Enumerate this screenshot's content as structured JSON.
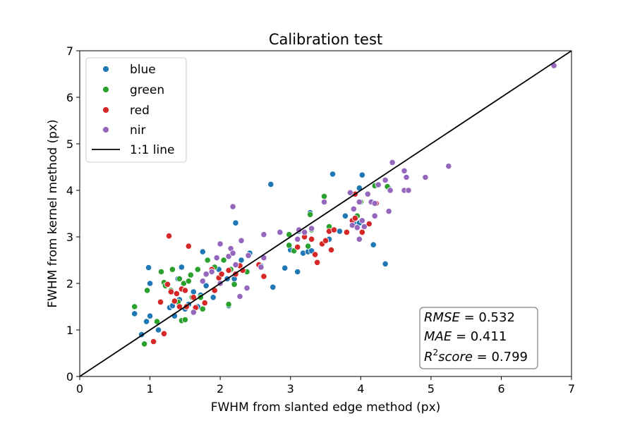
{
  "chart_data": {
    "type": "scatter",
    "title": "Calibration test",
    "xlabel": "FWHM from slanted edge method (px)",
    "ylabel": "FWHM from kernel method (px)",
    "xlim": [
      0,
      7
    ],
    "ylim": [
      0,
      7
    ],
    "xticks": [
      "0",
      "1",
      "2",
      "3",
      "4",
      "5",
      "6",
      "7"
    ],
    "yticks": [
      "0",
      "1",
      "2",
      "3",
      "4",
      "5",
      "6",
      "7"
    ],
    "grid": false,
    "legend_position": "top-left",
    "reference_line": {
      "name": "1:1 line",
      "points": [
        [
          0,
          0
        ],
        [
          7,
          7
        ]
      ],
      "color": "#000000"
    },
    "series": [
      {
        "name": "blue",
        "color": "#1f77b4",
        "points": [
          [
            0.78,
            1.35
          ],
          [
            0.88,
            0.9
          ],
          [
            0.95,
            1.18
          ],
          [
            0.98,
            2.34
          ],
          [
            1.0,
            2.0
          ],
          [
            1.0,
            1.3
          ],
          [
            1.05,
            0.75
          ],
          [
            1.12,
            1.0
          ],
          [
            1.28,
            1.48
          ],
          [
            1.32,
            1.52
          ],
          [
            1.35,
            1.3
          ],
          [
            1.4,
            2.1
          ],
          [
            1.42,
            1.65
          ],
          [
            1.45,
            2.35
          ],
          [
            1.5,
            1.45
          ],
          [
            1.55,
            1.55
          ],
          [
            1.62,
            1.82
          ],
          [
            1.68,
            1.5
          ],
          [
            1.72,
            1.75
          ],
          [
            1.75,
            2.68
          ],
          [
            1.8,
            1.95
          ],
          [
            1.9,
            1.7
          ],
          [
            1.98,
            2.3
          ],
          [
            2.1,
            2.1
          ],
          [
            2.12,
            1.52
          ],
          [
            2.2,
            2.1
          ],
          [
            2.22,
            3.3
          ],
          [
            2.3,
            2.5
          ],
          [
            2.42,
            2.65
          ],
          [
            2.58,
            2.38
          ],
          [
            2.72,
            4.13
          ],
          [
            2.75,
            1.92
          ],
          [
            2.92,
            2.33
          ],
          [
            3.0,
            2.72
          ],
          [
            3.1,
            2.25
          ],
          [
            3.12,
            3.12
          ],
          [
            3.18,
            2.65
          ],
          [
            3.25,
            2.68
          ],
          [
            3.28,
            3.52
          ],
          [
            3.3,
            2.7
          ],
          [
            3.55,
            2.95
          ],
          [
            3.6,
            4.35
          ],
          [
            3.7,
            3.12
          ],
          [
            3.78,
            3.45
          ],
          [
            3.9,
            3.3
          ],
          [
            3.98,
            3.3
          ],
          [
            3.98,
            4.05
          ],
          [
            4.02,
            4.33
          ],
          [
            4.18,
            2.83
          ],
          [
            4.35,
            2.42
          ],
          [
            4.4,
            4.05
          ]
        ]
      },
      {
        "name": "green",
        "color": "#2ca02c",
        "points": [
          [
            0.78,
            1.5
          ],
          [
            0.92,
            0.7
          ],
          [
            0.96,
            1.85
          ],
          [
            1.1,
            1.18
          ],
          [
            1.16,
            2.25
          ],
          [
            1.2,
            2.02
          ],
          [
            1.22,
            1.95
          ],
          [
            1.3,
            1.85
          ],
          [
            1.32,
            2.3
          ],
          [
            1.4,
            1.6
          ],
          [
            1.42,
            2.1
          ],
          [
            1.45,
            1.2
          ],
          [
            1.48,
            2.0
          ],
          [
            1.5,
            1.22
          ],
          [
            1.55,
            2.05
          ],
          [
            1.58,
            2.18
          ],
          [
            1.6,
            1.7
          ],
          [
            1.68,
            2.3
          ],
          [
            1.72,
            1.7
          ],
          [
            1.75,
            1.45
          ],
          [
            1.82,
            2.5
          ],
          [
            1.92,
            2.35
          ],
          [
            2.05,
            2.5
          ],
          [
            2.12,
            1.55
          ],
          [
            2.15,
            2.3
          ],
          [
            2.2,
            1.98
          ],
          [
            2.38,
            2.25
          ],
          [
            2.98,
            3.05
          ],
          [
            2.98,
            2.82
          ],
          [
            3.05,
            2.7
          ],
          [
            3.25,
            2.8
          ],
          [
            3.28,
            3.48
          ],
          [
            3.3,
            3.15
          ],
          [
            3.48,
            3.87
          ],
          [
            3.55,
            3.22
          ],
          [
            3.95,
            3.45
          ],
          [
            4.0,
            3.75
          ],
          [
            4.2,
            4.1
          ],
          [
            4.38,
            4.08
          ]
        ]
      },
      {
        "name": "red",
        "color": "#d62728",
        "points": [
          [
            1.05,
            0.75
          ],
          [
            1.15,
            1.6
          ],
          [
            1.2,
            0.92
          ],
          [
            1.25,
            1.98
          ],
          [
            1.27,
            3.02
          ],
          [
            1.3,
            1.82
          ],
          [
            1.35,
            1.62
          ],
          [
            1.38,
            1.78
          ],
          [
            1.42,
            1.5
          ],
          [
            1.45,
            1.88
          ],
          [
            1.5,
            1.85
          ],
          [
            1.52,
            1.5
          ],
          [
            1.55,
            2.8
          ],
          [
            1.62,
            1.7
          ],
          [
            1.65,
            1.48
          ],
          [
            1.78,
            1.58
          ],
          [
            1.88,
            2.3
          ],
          [
            1.92,
            1.85
          ],
          [
            1.98,
            2.12
          ],
          [
            2.02,
            2.2
          ],
          [
            2.12,
            2.28
          ],
          [
            2.22,
            2.2
          ],
          [
            2.28,
            2.38
          ],
          [
            2.32,
            2.28
          ],
          [
            2.55,
            2.4
          ],
          [
            2.62,
            2.15
          ],
          [
            3.1,
            2.78
          ],
          [
            3.2,
            3.0
          ],
          [
            3.3,
            2.95
          ],
          [
            3.35,
            2.62
          ],
          [
            3.38,
            2.45
          ],
          [
            3.45,
            2.85
          ],
          [
            3.5,
            2.92
          ],
          [
            3.55,
            3.12
          ],
          [
            3.58,
            2.72
          ],
          [
            3.62,
            3.15
          ],
          [
            3.8,
            3.1
          ],
          [
            3.88,
            3.35
          ],
          [
            3.92,
            3.4
          ],
          [
            3.92,
            3.92
          ],
          [
            4.02,
            3.1
          ],
          [
            4.12,
            3.28
          ],
          [
            4.22,
            3.72
          ]
        ]
      },
      {
        "name": "nir",
        "color": "#9467bd",
        "points": [
          [
            1.62,
            1.38
          ],
          [
            1.75,
            2.05
          ],
          [
            1.8,
            2.2
          ],
          [
            1.88,
            2.25
          ],
          [
            1.95,
            2.55
          ],
          [
            2.0,
            2.0
          ],
          [
            2.0,
            2.85
          ],
          [
            2.12,
            2.58
          ],
          [
            2.15,
            2.75
          ],
          [
            2.18,
            2.65
          ],
          [
            2.18,
            3.65
          ],
          [
            2.22,
            2.4
          ],
          [
            2.28,
            1.72
          ],
          [
            2.3,
            2.92
          ],
          [
            2.38,
            1.9
          ],
          [
            2.4,
            2.6
          ],
          [
            2.58,
            2.35
          ],
          [
            2.62,
            2.55
          ],
          [
            2.62,
            3.05
          ],
          [
            2.85,
            3.1
          ],
          [
            3.1,
            2.95
          ],
          [
            3.12,
            3.15
          ],
          [
            3.2,
            3.1
          ],
          [
            3.3,
            3.18
          ],
          [
            3.48,
            3.75
          ],
          [
            3.85,
            3.95
          ],
          [
            3.88,
            3.25
          ],
          [
            3.9,
            3.6
          ],
          [
            3.95,
            3.2
          ],
          [
            3.98,
            3.75
          ],
          [
            3.98,
            2.95
          ],
          [
            4.02,
            3.35
          ],
          [
            4.05,
            3.22
          ],
          [
            4.1,
            3.92
          ],
          [
            4.15,
            3.75
          ],
          [
            4.2,
            3.72
          ],
          [
            4.2,
            3.45
          ],
          [
            4.25,
            4.12
          ],
          [
            4.35,
            4.22
          ],
          [
            4.4,
            3.55
          ],
          [
            4.42,
            4.0
          ],
          [
            4.45,
            4.6
          ],
          [
            4.62,
            4.0
          ],
          [
            4.62,
            4.42
          ],
          [
            4.65,
            4.28
          ],
          [
            4.68,
            4.0
          ],
          [
            4.92,
            4.28
          ],
          [
            5.25,
            4.52
          ],
          [
            6.75,
            6.68
          ]
        ]
      }
    ],
    "annotation": {
      "location": "bottom-right",
      "lines": [
        {
          "label": "RMSE",
          "value": "0.532"
        },
        {
          "label": "MAE",
          "value": "0.411"
        },
        {
          "label": "R",
          "sup": "2",
          "label_suffix": "score",
          "value": "0.799"
        }
      ]
    }
  }
}
